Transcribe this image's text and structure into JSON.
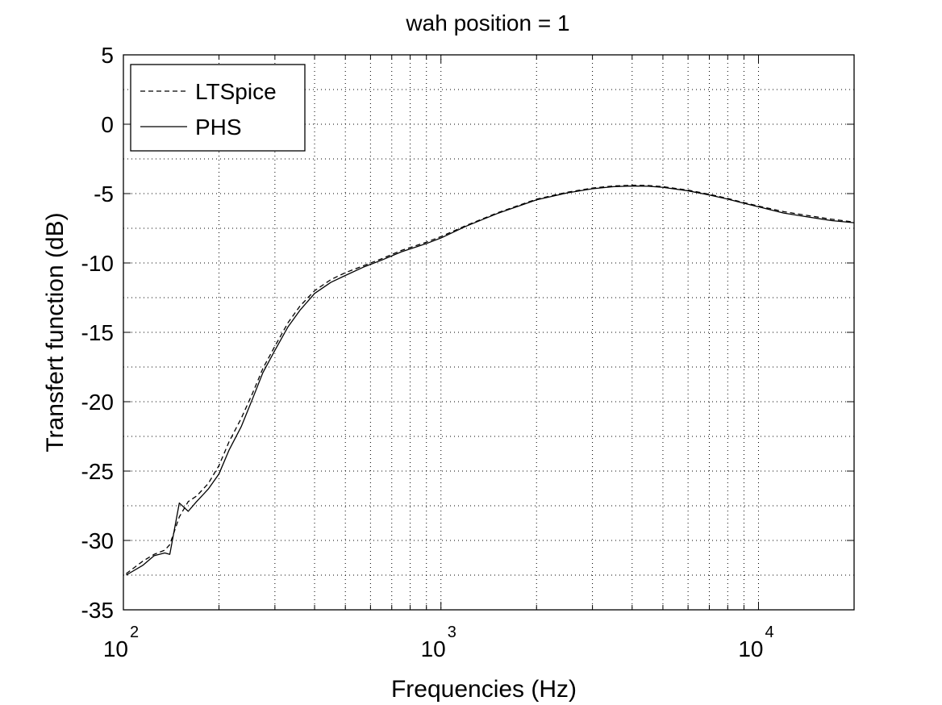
{
  "chart_data": {
    "type": "line",
    "title": "wah position = 1",
    "xlabel": "Frequencies (Hz)",
    "ylabel": "Transfert function (dB)",
    "xscale": "log",
    "xlim": [
      100,
      20000
    ],
    "ylim": [
      -35,
      5
    ],
    "grid": true,
    "legend_position": "top-left",
    "xticks": [
      {
        "value": 100,
        "base": "10",
        "exp": "2"
      },
      {
        "value": 1000,
        "base": "10",
        "exp": "3"
      },
      {
        "value": 10000,
        "base": "10",
        "exp": "4"
      }
    ],
    "yticks": [
      {
        "value": 5,
        "label": "5"
      },
      {
        "value": 0,
        "label": "0"
      },
      {
        "value": -5,
        "label": "-5"
      },
      {
        "value": -10,
        "label": "-10"
      },
      {
        "value": -15,
        "label": "-15"
      },
      {
        "value": -20,
        "label": "-20"
      },
      {
        "value": -25,
        "label": "-25"
      },
      {
        "value": -30,
        "label": "-30"
      },
      {
        "value": -35,
        "label": "-35"
      }
    ],
    "series": [
      {
        "name": "LTSpice",
        "style": "dashed",
        "color": "#000000",
        "x": [
          102,
          115,
          125,
          135,
          140,
          150,
          160,
          170,
          185,
          200,
          215,
          235,
          255,
          275,
          300,
          330,
          360,
          400,
          450,
          500,
          570,
          650,
          750,
          900,
          1000,
          1200,
          1500,
          2000,
          2500,
          3000,
          3500,
          4000,
          4500,
          5000,
          6000,
          7000,
          8000,
          9000,
          10000,
          12000,
          14000,
          17000,
          20000
        ],
        "y": [
          -32.4,
          -31.5,
          -31.0,
          -30.7,
          -30.3,
          -28.3,
          -27.2,
          -26.8,
          -25.9,
          -24.6,
          -22.9,
          -21.2,
          -19.4,
          -17.6,
          -16.0,
          -14.3,
          -13.1,
          -12.0,
          -11.2,
          -10.7,
          -10.2,
          -9.7,
          -9.1,
          -8.5,
          -8.1,
          -7.3,
          -6.4,
          -5.4,
          -4.9,
          -4.6,
          -4.45,
          -4.4,
          -4.42,
          -4.5,
          -4.75,
          -5.05,
          -5.35,
          -5.65,
          -5.9,
          -6.3,
          -6.55,
          -6.85,
          -7.05
        ]
      },
      {
        "name": "PHS",
        "style": "solid",
        "color": "#000000",
        "x": [
          102,
          115,
          125,
          135,
          140,
          150,
          160,
          170,
          185,
          200,
          215,
          235,
          255,
          275,
          300,
          330,
          360,
          400,
          450,
          500,
          570,
          650,
          750,
          900,
          1000,
          1200,
          1500,
          2000,
          2500,
          3000,
          3500,
          4000,
          4500,
          5000,
          6000,
          7000,
          8000,
          9000,
          10000,
          12000,
          14000,
          17000,
          20000
        ],
        "y": [
          -32.5,
          -31.8,
          -31.1,
          -30.9,
          -31.0,
          -27.3,
          -27.9,
          -27.2,
          -26.3,
          -25.2,
          -23.5,
          -21.8,
          -19.8,
          -17.9,
          -16.3,
          -14.6,
          -13.4,
          -12.2,
          -11.4,
          -10.9,
          -10.3,
          -9.8,
          -9.2,
          -8.6,
          -8.2,
          -7.35,
          -6.45,
          -5.45,
          -4.95,
          -4.65,
          -4.5,
          -4.45,
          -4.47,
          -4.55,
          -4.8,
          -5.1,
          -5.4,
          -5.7,
          -5.95,
          -6.4,
          -6.65,
          -6.95,
          -7.1
        ]
      }
    ]
  }
}
